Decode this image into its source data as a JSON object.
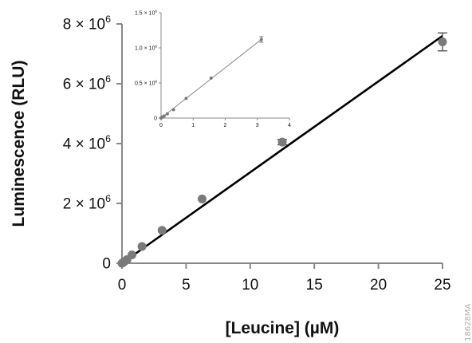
{
  "chart_data": [
    {
      "type": "scatter",
      "xlabel": "[Leucine] (µM)",
      "ylabel": "Luminescence (RLU)",
      "xlim": [
        0,
        25
      ],
      "ylim": [
        0,
        8000000
      ],
      "x_ticks": [
        0,
        5,
        10,
        15,
        20,
        25
      ],
      "x_tick_labels": [
        "0",
        "5",
        "10",
        "15",
        "20",
        "25"
      ],
      "y_ticks": [
        0,
        2000000,
        4000000,
        6000000,
        8000000
      ],
      "y_tick_labels": [
        {
          "base": "0",
          "exp": ""
        },
        {
          "base": "2 × 10",
          "exp": "6"
        },
        {
          "base": "4 × 10",
          "exp": "6"
        },
        {
          "base": "6 × 10",
          "exp": "6"
        },
        {
          "base": "8 × 10",
          "exp": "6"
        }
      ],
      "series": [
        {
          "x": [
            0,
            0.098,
            0.195,
            0.39,
            0.78,
            1.56,
            3.125,
            6.25,
            12.5,
            25
          ],
          "y": [
            0,
            30000,
            60000,
            120000,
            280000,
            560000,
            1100000,
            2150000,
            4050000,
            7400000
          ],
          "error": [
            0,
            0,
            0,
            0,
            0,
            0,
            0,
            0,
            90000,
            300000
          ]
        }
      ],
      "fit_line": {
        "x": [
          0,
          25
        ],
        "y": [
          0,
          7600000
        ]
      },
      "marker_color": "#7a7a7a",
      "line_color": "#000000"
    },
    {
      "type": "scatter",
      "xlim": [
        0,
        4
      ],
      "ylim": [
        0,
        1500000
      ],
      "x_ticks": [
        0,
        1,
        2,
        3,
        4
      ],
      "x_tick_labels": [
        "0",
        "1",
        "2",
        "3",
        "4"
      ],
      "y_ticks": [
        0,
        500000,
        1000000,
        1500000
      ],
      "y_tick_labels": [
        {
          "base": "0",
          "exp": ""
        },
        {
          "base": "0.5 × 10",
          "exp": "6"
        },
        {
          "base": "1.0 × 10",
          "exp": "6"
        },
        {
          "base": "1.5 × 10",
          "exp": "6"
        }
      ],
      "series": [
        {
          "x": [
            0,
            0.0244,
            0.049,
            0.098,
            0.195,
            0.39,
            0.78,
            1.56,
            3.125
          ],
          "y": [
            0,
            8000,
            16000,
            30000,
            60000,
            120000,
            280000,
            570000,
            1120000
          ],
          "error": [
            0,
            0,
            0,
            0,
            0,
            0,
            0,
            0,
            40000
          ]
        }
      ],
      "fit_line": {
        "x": [
          0,
          3.125
        ],
        "y": [
          0,
          1120000
        ]
      },
      "marker_color": "#7a7a7a",
      "line_color": "#888888"
    }
  ],
  "watermark": "18628MA"
}
